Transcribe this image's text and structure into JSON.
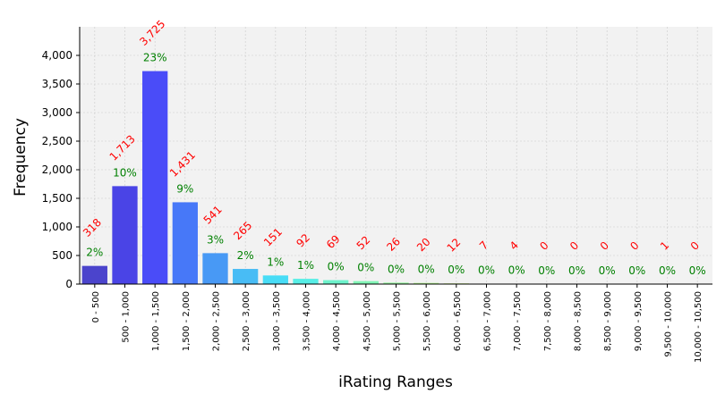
{
  "chart_data": {
    "type": "bar",
    "xlabel": "iRating Ranges",
    "ylabel": "Frequency",
    "ylim": [
      0,
      4500
    ],
    "yticks": [
      "0",
      "500",
      "1,000",
      "1,500",
      "2,000",
      "2,500",
      "3,000",
      "3,500",
      "4,000"
    ],
    "ytick_values": [
      0,
      500,
      1000,
      1500,
      2000,
      2500,
      3000,
      3500,
      4000
    ],
    "grid": true,
    "categories": [
      "0 - 500",
      "500 - 1,000",
      "1,000 - 1,500",
      "1,500 - 2,000",
      "2,000 - 2,500",
      "2,500 - 3,000",
      "3,000 - 3,500",
      "3,500 - 4,000",
      "4,000 - 4,500",
      "4,500 - 5,000",
      "5,000 - 5,500",
      "5,500 - 6,000",
      "6,000 - 6,500",
      "6,500 - 7,000",
      "7,000 - 7,500",
      "7,500 - 8,000",
      "8,000 - 8,500",
      "8,500 - 9,000",
      "9,000 - 9,500",
      "9,500 - 10,000",
      "10,000 - 10,500"
    ],
    "values": [
      318,
      1713,
      3725,
      1431,
      541,
      265,
      151,
      92,
      69,
      52,
      26,
      20,
      12,
      7,
      4,
      0,
      0,
      0,
      0,
      1,
      0
    ],
    "count_labels": [
      "318",
      "1,713",
      "3,725",
      "1,431",
      "541",
      "265",
      "151",
      "92",
      "69",
      "52",
      "26",
      "20",
      "12",
      "7",
      "4",
      "0",
      "0",
      "0",
      "0",
      "1",
      "0"
    ],
    "percent_labels": [
      "2%",
      "10%",
      "23%",
      "9%",
      "3%",
      "2%",
      "1%",
      "1%",
      "0%",
      "0%",
      "0%",
      "0%",
      "0%",
      "0%",
      "0%",
      "0%",
      "0%",
      "0%",
      "0%",
      "0%",
      "0%"
    ],
    "bar_colors": [
      "#4b44cc",
      "#4a44e6",
      "#4a4cf8",
      "#4778f8",
      "#4899f5",
      "#48bcf5",
      "#48dcf6",
      "#57eee6",
      "#6ef3cb",
      "#82f5b6",
      "#97f6a0",
      "#aef58b",
      "#c6f277",
      "#dbec66",
      "#eee25a",
      "#f8d14f",
      "#fbb947",
      "#fb9c3f",
      "#f57e38",
      "#e45e32",
      "#cc3f2b"
    ],
    "colors": {
      "count_label": "#ff0000",
      "percent_label": "#008000",
      "plot_background": "#f2f2f2",
      "grid": "#cccccc"
    }
  }
}
